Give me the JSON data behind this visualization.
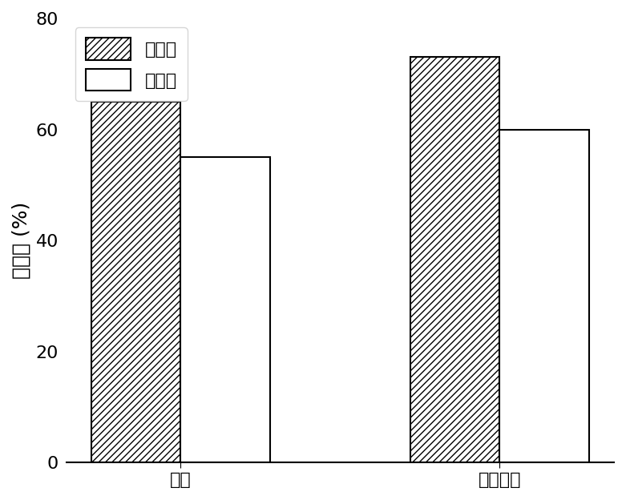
{
  "categories": [
    "魔母",
    "大肠杆菌"
  ],
  "categories_display": [
    "魔母",
    "大肠杆菌"
  ],
  "control_values": [
    65,
    73
  ],
  "experiment_values": [
    55,
    60
  ],
  "ylabel": "致死率 (%)",
  "ylim": [
    0,
    80
  ],
  "yticks": [
    0,
    20,
    40,
    60,
    80
  ],
  "legend_labels": [
    "对照组",
    "实验组"
  ],
  "bar_width": 0.28,
  "hatch_pattern": "////",
  "control_facecolor": "white",
  "control_edgecolor": "black",
  "experiment_facecolor": "white",
  "experiment_edgecolor": "black",
  "background_color": "white",
  "label_fontsize": 18,
  "tick_fontsize": 16,
  "legend_fontsize": 16
}
